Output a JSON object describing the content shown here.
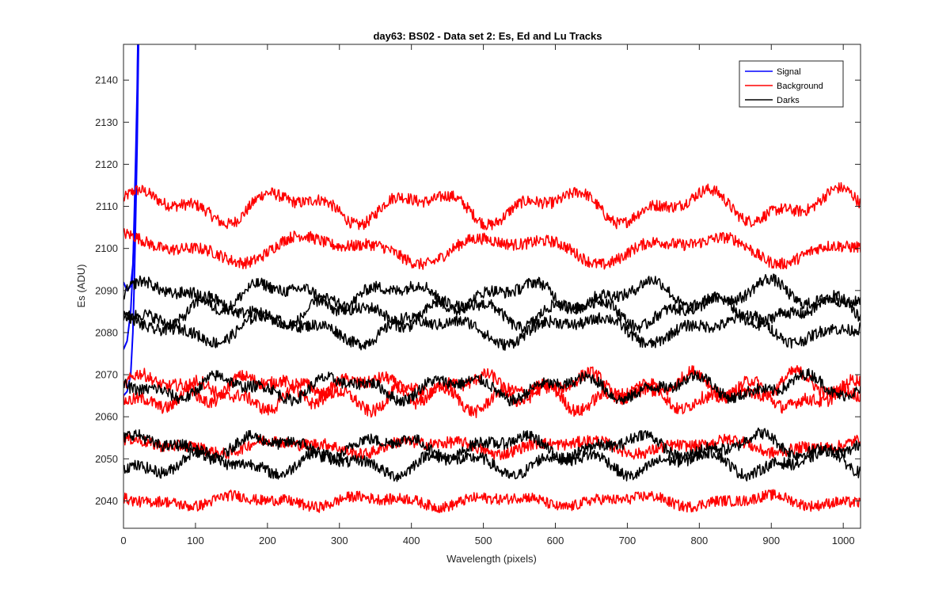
{
  "chart_data": {
    "type": "line",
    "title": "day63: BS02 - Data set 2: Es, Ed and Lu Tracks",
    "xlabel": "Wavelength (pixels)",
    "ylabel": "Es (ADU)",
    "xlim": [
      0,
      1024
    ],
    "ylim": [
      2033.5,
      2148.5
    ],
    "xticks": [
      0,
      100,
      200,
      300,
      400,
      500,
      600,
      700,
      800,
      900,
      1000
    ],
    "yticks": [
      2040,
      2050,
      2060,
      2070,
      2080,
      2090,
      2100,
      2110,
      2120,
      2130,
      2140
    ],
    "grid": false,
    "legend_position": "top-right",
    "legend": [
      {
        "name": "Signal",
        "color": "#0000ff"
      },
      {
        "name": "Background",
        "color": "#ff0000"
      },
      {
        "name": "Darks",
        "color": "#000000"
      }
    ],
    "series": [
      {
        "group": "Signal",
        "color": "#0000ff",
        "points": [
          [
            0,
            2076
          ],
          [
            5,
            2078
          ],
          [
            10,
            2085
          ],
          [
            13,
            2095
          ],
          [
            15,
            2108
          ],
          [
            17,
            2122
          ],
          [
            19,
            2138
          ],
          [
            20,
            2150
          ]
        ]
      },
      {
        "group": "Signal",
        "color": "#0000ff",
        "points": [
          [
            0,
            2065
          ],
          [
            5,
            2066
          ],
          [
            10,
            2070
          ],
          [
            13,
            2080
          ],
          [
            15,
            2092
          ],
          [
            17,
            2108
          ],
          [
            19,
            2125
          ],
          [
            21,
            2150
          ]
        ]
      },
      {
        "group": "Signal",
        "color": "#0000ff",
        "points": [
          [
            0,
            2092
          ],
          [
            5,
            2090
          ],
          [
            10,
            2091
          ],
          [
            13,
            2096
          ],
          [
            15,
            2104
          ],
          [
            17,
            2116
          ],
          [
            19,
            2132
          ],
          [
            20,
            2150
          ]
        ]
      },
      {
        "group": "Background",
        "color": "#ff0000",
        "base": 2110,
        "amp": 3.5,
        "period": 190,
        "phase": 0.3,
        "noise": 1.4
      },
      {
        "group": "Background",
        "color": "#ff0000",
        "base": 2100,
        "amp": 3.0,
        "period": 260,
        "phase": 1.2,
        "noise": 1.4
      },
      {
        "group": "Background",
        "color": "#ff0000",
        "base": 2067,
        "amp": 3.0,
        "period": 150,
        "phase": 0.0,
        "noise": 1.5
      },
      {
        "group": "Background",
        "color": "#ff0000",
        "base": 2065,
        "amp": 3.0,
        "period": 150,
        "phase": 3.1,
        "noise": 1.5
      },
      {
        "group": "Background",
        "color": "#ff0000",
        "base": 2053,
        "amp": 1.5,
        "period": 200,
        "phase": 0.8,
        "noise": 1.4
      },
      {
        "group": "Background",
        "color": "#ff0000",
        "base": 2040,
        "amp": 1.2,
        "period": 180,
        "phase": 2.0,
        "noise": 1.3
      },
      {
        "group": "Darks",
        "color": "#000000",
        "base": 2089,
        "amp": 3.0,
        "period": 170,
        "phase": 0.0,
        "noise": 1.4
      },
      {
        "group": "Darks",
        "color": "#000000",
        "base": 2085,
        "amp": 3.0,
        "period": 170,
        "phase": 3.1,
        "noise": 1.4
      },
      {
        "group": "Darks",
        "color": "#000000",
        "base": 2081,
        "amp": 3.0,
        "period": 210,
        "phase": 1.4,
        "noise": 1.4
      },
      {
        "group": "Darks",
        "color": "#000000",
        "base": 2067,
        "amp": 2.5,
        "period": 160,
        "phase": 2.2,
        "noise": 1.4
      },
      {
        "group": "Darks",
        "color": "#000000",
        "base": 2053,
        "amp": 2.5,
        "period": 170,
        "phase": 0.5,
        "noise": 1.4
      },
      {
        "group": "Darks",
        "color": "#000000",
        "base": 2049,
        "amp": 2.5,
        "period": 170,
        "phase": 3.6,
        "noise": 1.4
      }
    ]
  }
}
